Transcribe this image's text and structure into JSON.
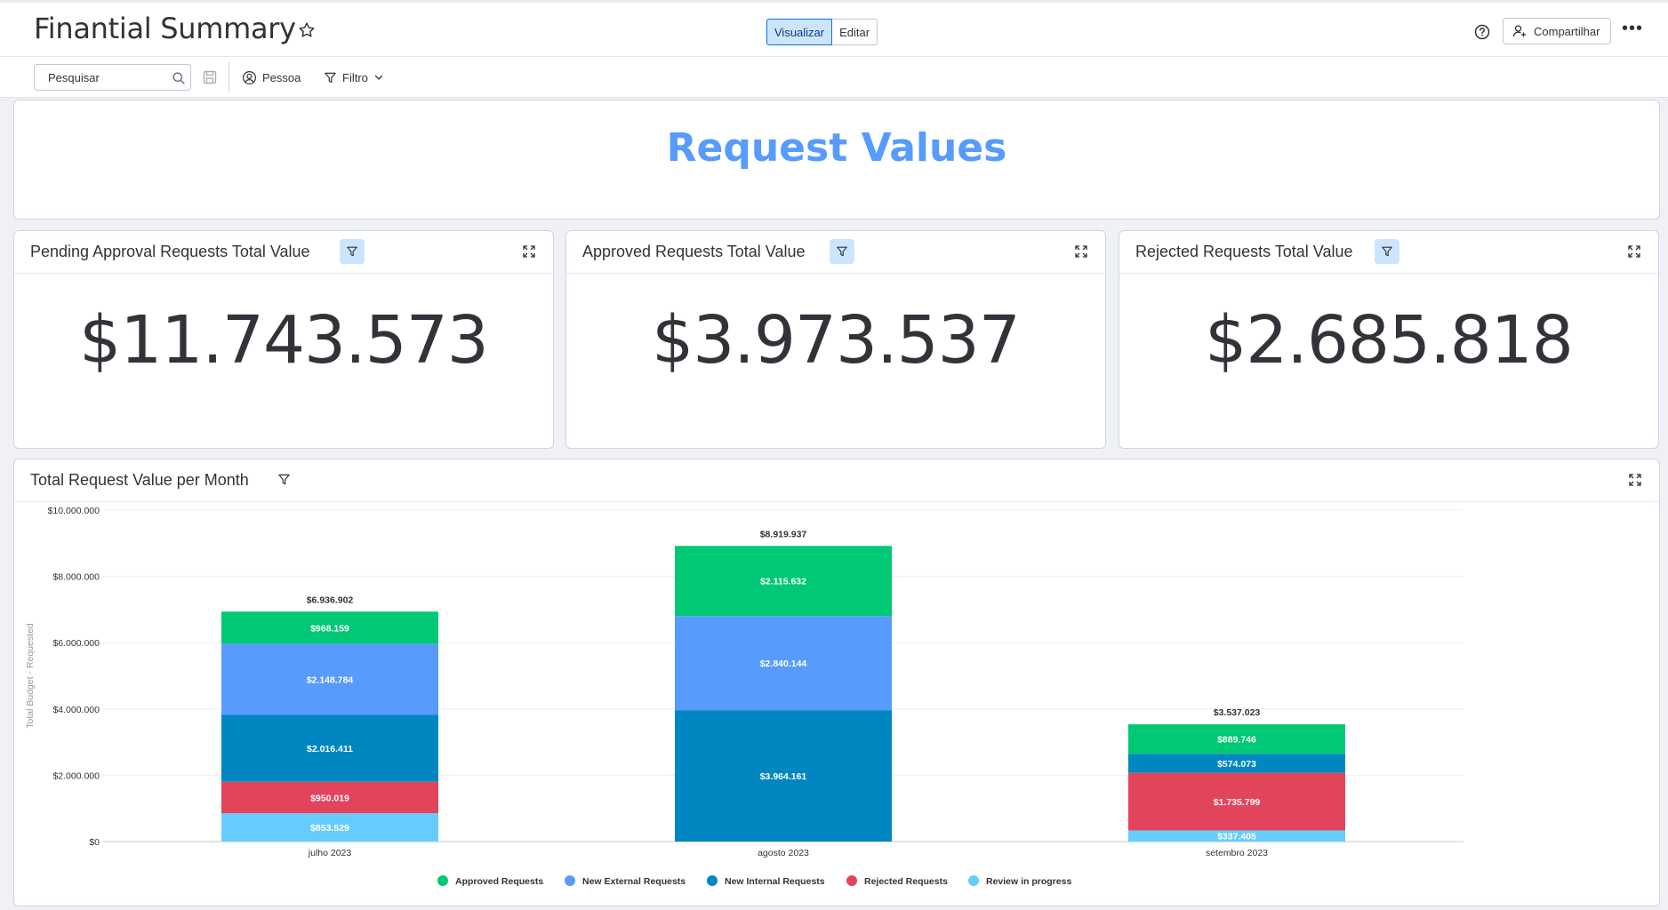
{
  "header": {
    "title": "Finantial Summary",
    "view_label": "Visualizar",
    "edit_label": "Editar",
    "share_label": "Compartilhar"
  },
  "toolbar": {
    "search_placeholder": "Pesquisar",
    "person_label": "Pessoa",
    "filter_label": "Filtro"
  },
  "banner": {
    "title": "Request Values"
  },
  "numbers": [
    {
      "title": "Pending Approval Requests Total Value",
      "value": "$11.743.573"
    },
    {
      "title": "Approved Requests Total Value",
      "value": "$3.973.537"
    },
    {
      "title": "Rejected Requests Total Value",
      "value": "$2.685.818"
    }
  ],
  "chart_widget": {
    "title": "Total Request Value per Month"
  },
  "colors": {
    "accent": "#579bfc",
    "approved": "#00c875",
    "new_external": "#579bfc",
    "new_internal": "#0086c0",
    "rejected": "#e2445c",
    "review": "#66ccff"
  },
  "chart_data": {
    "type": "bar",
    "stacked": true,
    "ylabel": "Total Budget - Requested",
    "ylim": [
      0,
      10000000
    ],
    "y_ticks": [
      "$0",
      "$2.000.000",
      "$4.000.000",
      "$6.000.000",
      "$8.000.000",
      "$10.000.000"
    ],
    "categories": [
      "julho 2023",
      "agosto 2023",
      "setembro 2023"
    ],
    "totals": [
      "$6.936.902",
      "$8.919.937",
      "$3.537.023"
    ],
    "legend_position": "bottom",
    "series": [
      {
        "name": "Review in progress",
        "color": "#66ccff",
        "values": [
          853529,
          0,
          337405
        ],
        "labels": [
          "$853.529",
          "",
          "$337.405"
        ]
      },
      {
        "name": "Rejected Requests",
        "color": "#e2445c",
        "values": [
          950019,
          0,
          1735799
        ],
        "labels": [
          "$950.019",
          "",
          "$1.735.799"
        ]
      },
      {
        "name": "New Internal Requests",
        "color": "#0086c0",
        "values": [
          2016411,
          3964161,
          574073
        ],
        "labels": [
          "$2.016.411",
          "$3.964.161",
          "$574.073"
        ]
      },
      {
        "name": "New External Requests",
        "color": "#579bfc",
        "values": [
          2148784,
          2840144,
          0
        ],
        "labels": [
          "$2.148.784",
          "$2.840.144",
          ""
        ]
      },
      {
        "name": "Approved Requests",
        "color": "#00c875",
        "values": [
          968159,
          2115632,
          889746
        ],
        "labels": [
          "$968.159",
          "$2.115.632",
          "$889.746"
        ]
      }
    ],
    "legend_order": [
      "Approved Requests",
      "New External Requests",
      "New Internal Requests",
      "Rejected Requests",
      "Review in progress"
    ]
  }
}
